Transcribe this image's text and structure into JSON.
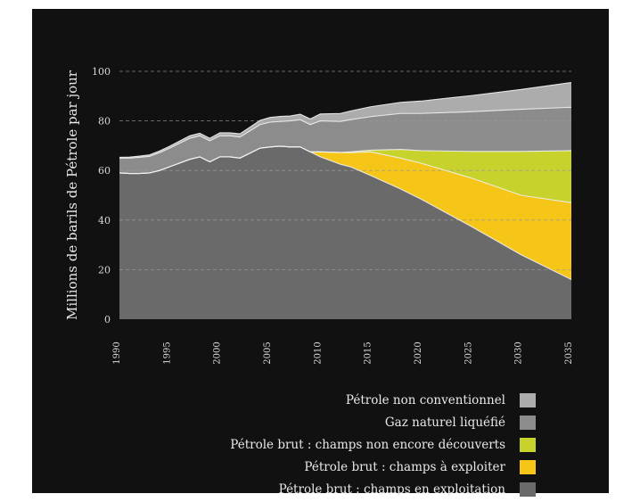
{
  "chart_data": {
    "type": "area",
    "stacked": true,
    "ylabel": "Millions de barils de Pétrole par jour",
    "xlabel": "",
    "title": "",
    "ylim": [
      0,
      100
    ],
    "xlim": [
      1990,
      2035
    ],
    "yticks": [
      0,
      20,
      40,
      60,
      80,
      100
    ],
    "xticks": [
      1990,
      1995,
      2000,
      2005,
      2010,
      2015,
      2020,
      2025,
      2030,
      2035
    ],
    "grid": true,
    "legend_position": "bottom-right",
    "x": [
      1990,
      1991,
      1992,
      1993,
      1994,
      1995,
      1996,
      1997,
      1998,
      1999,
      2000,
      2001,
      2002,
      2003,
      2004,
      2005,
      2006,
      2007,
      2008,
      2009,
      2010,
      2012,
      2013,
      2015,
      2018,
      2020,
      2025,
      2030,
      2035
    ],
    "series": [
      {
        "name": "Pétrole brut : champs en exploitation",
        "color": "#6a6a6a",
        "values": [
          59,
          58.8,
          58.8,
          59,
          60,
          61.5,
          63,
          64.5,
          65.5,
          63.5,
          65.5,
          65.5,
          65,
          67,
          69,
          69.5,
          69.8,
          69.5,
          69.5,
          67.5,
          65.5,
          62.5,
          61.5,
          58,
          52.5,
          48.5,
          37.5,
          26,
          16
        ]
      },
      {
        "name": "Pétrole brut : champs à exploiter",
        "color": "#f5c518",
        "values": [
          0,
          0,
          0,
          0,
          0,
          0,
          0,
          0,
          0,
          0,
          0,
          0,
          0,
          0,
          0,
          0,
          0,
          0,
          0,
          0,
          2,
          4.8,
          5.7,
          9.5,
          12.5,
          14.5,
          19.5,
          24,
          31
        ]
      },
      {
        "name": "Pétrole brut : champs non encore  découverts",
        "color": "#c8d22c",
        "values": [
          0,
          0,
          0,
          0,
          0,
          0,
          0,
          0,
          0,
          0,
          0,
          0,
          0,
          0,
          0,
          0,
          0,
          0,
          0,
          0,
          0,
          0,
          0.3,
          0.7,
          3.5,
          5,
          10.7,
          17.7,
          21
        ]
      },
      {
        "name": "Gaz naturel liquéfié",
        "color": "#8c8c8c",
        "values": [
          6,
          6.2,
          6.5,
          6.7,
          7.2,
          7.5,
          8,
          8.5,
          8.5,
          8.5,
          8.5,
          8.5,
          8.5,
          9,
          9.5,
          10,
          10,
          10.5,
          11,
          11,
          12.5,
          12.5,
          13,
          13.5,
          14.5,
          15,
          16,
          17,
          17.5
        ]
      },
      {
        "name": "Pétrole non conventionnel",
        "color": "#acacac",
        "values": [
          0.3,
          0.4,
          0.5,
          0.6,
          0.7,
          0.8,
          0.9,
          1,
          1,
          1,
          1.2,
          1.2,
          1.3,
          1.5,
          1.7,
          1.9,
          2,
          2,
          2.2,
          2.3,
          2.8,
          3.2,
          3.5,
          4,
          4.5,
          5,
          6.5,
          8,
          10
        ]
      }
    ]
  },
  "legend": {
    "items": [
      {
        "label": "Pétrole non conventionnel",
        "color": "#acacac"
      },
      {
        "label": "Gaz naturel liquéfié",
        "color": "#8c8c8c"
      },
      {
        "label": "Pétrole brut : champs non encore  découverts",
        "color": "#c8d22c"
      },
      {
        "label": "Pétrole brut : champs à exploiter",
        "color": "#f5c518"
      },
      {
        "label": "Pétrole brut : champs en exploitation",
        "color": "#6a6a6a"
      }
    ]
  }
}
